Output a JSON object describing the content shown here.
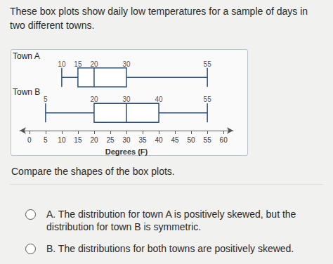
{
  "header": "These box plots show daily low temperatures for a sample of days in two different towns.",
  "chart_data": {
    "type": "boxplot",
    "categories": [
      "Town A",
      "Town B"
    ],
    "values": [
      [
        10,
        15,
        20,
        30,
        55
      ],
      [
        5,
        20,
        30,
        40,
        55
      ]
    ],
    "color": "#2c4f7c",
    "xlabel": "Degrees (F)",
    "xlim": [
      -3,
      63
    ],
    "xticks": [
      0,
      5,
      10,
      15,
      20,
      25,
      30,
      35,
      40,
      45,
      50,
      55,
      60
    ],
    "data_labels": true,
    "grid": false
  },
  "question": "Compare the shapes of the box plots.",
  "options": [
    "A. The distribution for town A is positively skewed, but the distribution for town B is symmetric.",
    "B. The distributions for both towns are positively skewed."
  ]
}
